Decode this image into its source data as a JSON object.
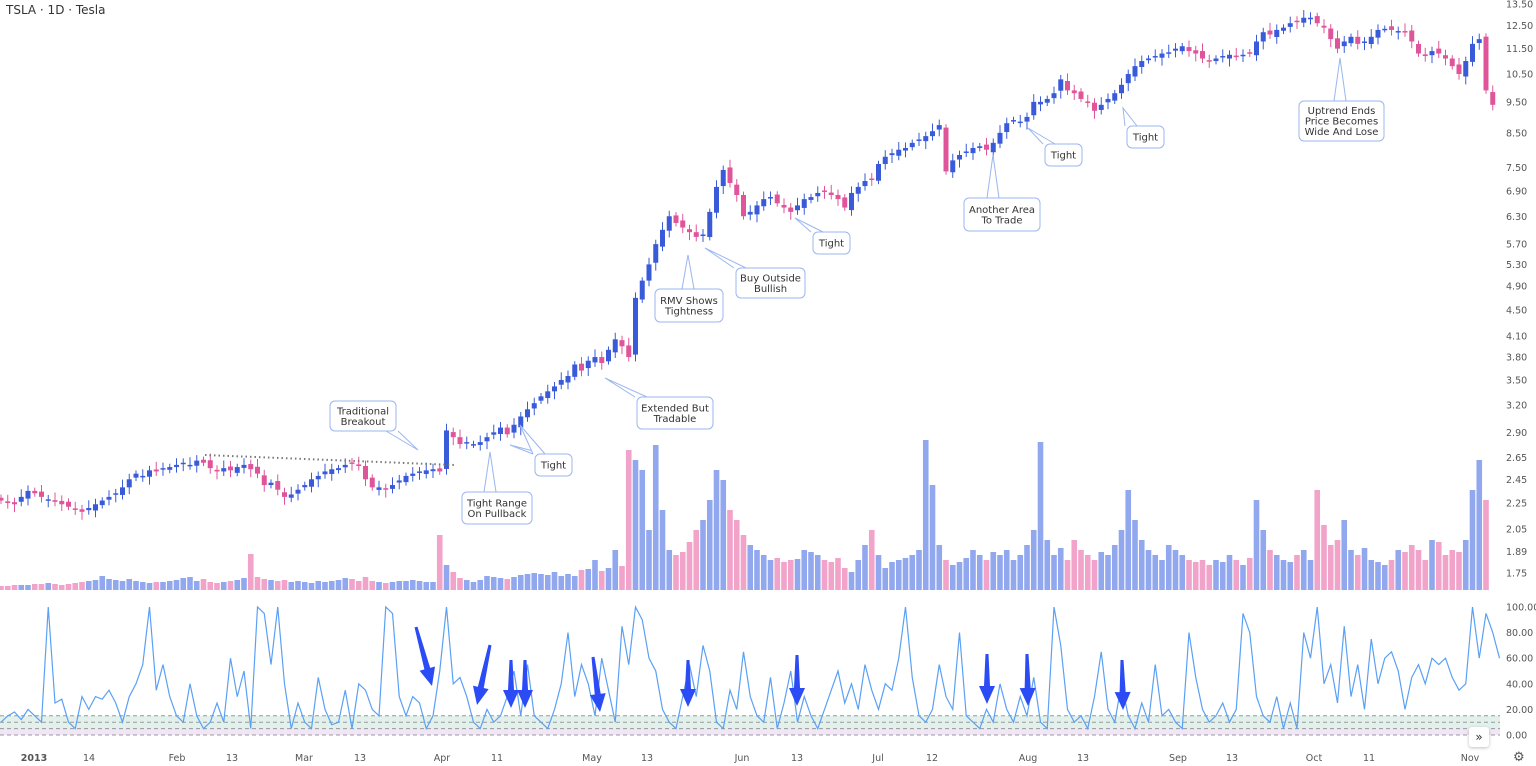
{
  "header": {
    "title": "TSLA · 1D · Tesla"
  },
  "colors": {
    "up": "#3a5bd9",
    "down": "#e0559a",
    "vol_up": "#91a8ee",
    "vol_down": "#f2a3c9",
    "rmv_line": "#5aa0f5",
    "arrow": "#2b4cf5",
    "callout_border": "#9bb6f0"
  },
  "chart_data": [
    {
      "type": "candlestick",
      "scale": "log",
      "y_ticks": [
        "13.50",
        "12.50",
        "11.50",
        "10.50",
        "9.50",
        "8.50",
        "7.50",
        "6.90",
        "6.30",
        "5.70",
        "5.30",
        "4.90",
        "4.50",
        "4.10",
        "3.80",
        "3.50",
        "3.20",
        "2.90",
        "2.65",
        "2.45",
        "2.25",
        "2.05",
        "1.89",
        "1.75"
      ],
      "ylim": [
        1.75,
        13.5
      ],
      "x_ticks": [
        {
          "label": "2013",
          "bold": true
        },
        {
          "label": "14"
        },
        {
          "label": "Feb"
        },
        {
          "label": "13"
        },
        {
          "label": "Mar"
        },
        {
          "label": "13"
        },
        {
          "label": "Apr"
        },
        {
          "label": "11"
        },
        {
          "label": "May"
        },
        {
          "label": "13"
        },
        {
          "label": "Jun"
        },
        {
          "label": "13"
        },
        {
          "label": "Jul"
        },
        {
          "label": "12"
        },
        {
          "label": "Aug"
        },
        {
          "label": "13"
        },
        {
          "label": "Sep"
        },
        {
          "label": "13"
        },
        {
          "label": "Oct"
        },
        {
          "label": "11"
        },
        {
          "label": "Nov"
        }
      ],
      "closes": [
        2.27,
        2.25,
        2.24,
        2.3,
        2.35,
        2.33,
        2.3,
        2.28,
        2.26,
        2.24,
        2.22,
        2.2,
        2.18,
        2.21,
        2.24,
        2.27,
        2.3,
        2.33,
        2.38,
        2.45,
        2.5,
        2.48,
        2.53,
        2.52,
        2.55,
        2.56,
        2.58,
        2.6,
        2.58,
        2.62,
        2.6,
        2.55,
        2.52,
        2.55,
        2.53,
        2.56,
        2.58,
        2.54,
        2.5,
        2.4,
        2.42,
        2.36,
        2.3,
        2.32,
        2.36,
        2.4,
        2.45,
        2.48,
        2.52,
        2.54,
        2.55,
        2.58,
        2.6,
        2.57,
        2.45,
        2.38,
        2.38,
        2.36,
        2.4,
        2.44,
        2.48,
        2.5,
        2.52,
        2.53,
        2.54,
        2.52,
        2.92,
        2.85,
        2.78,
        2.8,
        2.78,
        2.8,
        2.85,
        2.9,
        2.95,
        2.88,
        2.98,
        3.07,
        3.15,
        3.22,
        3.3,
        3.36,
        3.42,
        3.5,
        3.55,
        3.7,
        3.62,
        3.75,
        3.8,
        3.72,
        3.9,
        4.05,
        3.95,
        3.8,
        4.7,
        5.0,
        5.3,
        5.7,
        6.0,
        6.3,
        6.15,
        6.05,
        5.95,
        5.85,
        5.9,
        6.4,
        7.0,
        7.44,
        7.1,
        6.8,
        6.3,
        6.4,
        6.55,
        6.7,
        6.75,
        6.6,
        6.5,
        6.4,
        6.55,
        6.7,
        6.75,
        6.85,
        6.9,
        6.8,
        6.7,
        6.5,
        6.85,
        7.0,
        7.15,
        7.2,
        7.6,
        7.8,
        7.9,
        8.0,
        8.05,
        8.2,
        8.3,
        8.4,
        8.55,
        8.74,
        7.4,
        7.7,
        7.85,
        7.95,
        8.05,
        8.1,
        8.0,
        8.2,
        8.5,
        8.8,
        8.9,
        8.85,
        9.0,
        9.5,
        9.5,
        9.6,
        9.8,
        10.3,
        9.9,
        9.8,
        9.6,
        9.5,
        9.2,
        9.4,
        9.6,
        9.8,
        10.1,
        10.5,
        10.8,
        11.0,
        11.1,
        11.2,
        11.3,
        11.35,
        11.5,
        11.6,
        11.4,
        11.3,
        11.1,
        11.0,
        11.1,
        11.2,
        11.25,
        11.2,
        11.25,
        11.3,
        11.8,
        12.2,
        12.1,
        12.3,
        12.4,
        12.6,
        12.7,
        12.85,
        12.85,
        12.6,
        12.4,
        11.9,
        11.5,
        11.8,
        12.0,
        11.7,
        11.8,
        12.0,
        12.3,
        12.35,
        12.3,
        12.25,
        12.2,
        11.8,
        11.3,
        11.2,
        11.4,
        11.3,
        11.1,
        10.8,
        10.5,
        11.0,
        11.7,
        11.9,
        9.9,
        9.4
      ],
      "volume": [
        4,
        4,
        5,
        5,
        5,
        6,
        6,
        7,
        6,
        5,
        6,
        7,
        8,
        9,
        10,
        14,
        11,
        10,
        9,
        11,
        9,
        8,
        7,
        8,
        8,
        9,
        10,
        12,
        13,
        9,
        11,
        8,
        7,
        8,
        9,
        10,
        12,
        36,
        13,
        11,
        10,
        9,
        10,
        8,
        9,
        8,
        7,
        9,
        8,
        9,
        10,
        12,
        11,
        9,
        13,
        9,
        8,
        7,
        8,
        9,
        9,
        10,
        9,
        8,
        8,
        55,
        25,
        18,
        12,
        10,
        8,
        10,
        14,
        13,
        12,
        11,
        13,
        15,
        16,
        17,
        16,
        15,
        18,
        14,
        16,
        14,
        20,
        21,
        30,
        19,
        22,
        40,
        24,
        140,
        130,
        120,
        60,
        145,
        80,
        40,
        35,
        38,
        48,
        60,
        70,
        90,
        120,
        110,
        80,
        70,
        55,
        45,
        40,
        35,
        30,
        32,
        28,
        30,
        31,
        40,
        38,
        35,
        30,
        28,
        32,
        22,
        18,
        30,
        45,
        60,
        35,
        22,
        28,
        30,
        32,
        35,
        40,
        150,
        105,
        45,
        30,
        25,
        28,
        32,
        40,
        35,
        30,
        38,
        35,
        40,
        30,
        35,
        45,
        60,
        148,
        50,
        35,
        42,
        30,
        50,
        40,
        35,
        30,
        38,
        35,
        45,
        60,
        100,
        70,
        50,
        40,
        35,
        30,
        45,
        40,
        35,
        30,
        28,
        30,
        25,
        30,
        28,
        35,
        30,
        25,
        32,
        90,
        60,
        40,
        35,
        30,
        28,
        35,
        40,
        30,
        100,
        65,
        45,
        50,
        70,
        40,
        35,
        42,
        30,
        28,
        25,
        30,
        40,
        38,
        45,
        40,
        30,
        50,
        48,
        35,
        40,
        38,
        50,
        100,
        130,
        90
      ]
    },
    {
      "type": "line",
      "ylim": [
        0,
        100
      ],
      "y_ticks": [
        "100.00",
        "80.00",
        "60.00",
        "40.00",
        "20.00",
        "0.00"
      ],
      "bands": [
        {
          "from": 5,
          "to": 15,
          "color": "#e3f1ec"
        },
        {
          "from": 0,
          "to": 5,
          "color": "#f1e6f5"
        }
      ],
      "values": [
        10,
        15,
        18,
        12,
        20,
        15,
        10,
        100,
        25,
        28,
        10,
        5,
        30,
        20,
        30,
        28,
        35,
        25,
        10,
        30,
        40,
        55,
        100,
        35,
        55,
        30,
        15,
        10,
        40,
        15,
        5,
        10,
        25,
        10,
        60,
        30,
        50,
        5,
        100,
        95,
        55,
        100,
        40,
        5,
        25,
        10,
        5,
        45,
        20,
        8,
        10,
        35,
        5,
        40,
        35,
        20,
        15,
        100,
        95,
        30,
        15,
        30,
        25,
        5,
        15,
        50,
        100,
        40,
        45,
        30,
        10,
        5,
        20,
        10,
        15,
        30,
        50,
        15,
        55,
        15,
        10,
        5,
        20,
        40,
        80,
        30,
        55,
        40,
        15,
        60,
        35,
        10,
        85,
        55,
        100,
        90,
        60,
        50,
        20,
        10,
        5,
        30,
        55,
        30,
        70,
        50,
        10,
        5,
        35,
        20,
        65,
        30,
        15,
        10,
        45,
        5,
        25,
        50,
        10,
        30,
        15,
        5,
        20,
        35,
        50,
        25,
        40,
        20,
        55,
        35,
        20,
        40,
        35,
        60,
        100,
        45,
        15,
        10,
        20,
        55,
        30,
        20,
        80,
        15,
        10,
        5,
        20,
        10,
        40,
        20,
        10,
        30,
        15,
        45,
        10,
        5,
        100,
        70,
        20,
        10,
        15,
        5,
        30,
        65,
        20,
        10,
        40,
        15,
        5,
        25,
        10,
        55,
        15,
        20,
        10,
        5,
        80,
        45,
        20,
        10,
        15,
        25,
        10,
        20,
        95,
        80,
        30,
        15,
        10,
        30,
        5,
        25,
        5,
        80,
        60,
        100,
        40,
        55,
        25,
        85,
        30,
        55,
        20,
        75,
        40,
        60,
        65,
        50,
        20,
        45,
        55,
        40,
        60,
        55,
        60,
        45,
        35,
        40,
        100,
        60,
        95,
        80,
        60
      ]
    }
  ],
  "annotations": {
    "callouts": [
      {
        "lines": [
          "Traditional",
          "Breakout"
        ]
      },
      {
        "lines": [
          "Tight Range",
          "On Pullback"
        ]
      },
      {
        "lines": [
          "Tight"
        ]
      },
      {
        "lines": [
          "Extended But",
          "Tradable"
        ]
      },
      {
        "lines": [
          "RMV Shows",
          "Tightness"
        ]
      },
      {
        "lines": [
          "Buy Outside",
          "Bullish"
        ]
      },
      {
        "lines": [
          "Tight"
        ]
      },
      {
        "lines": [
          "Another Area",
          "To Trade"
        ]
      },
      {
        "lines": [
          "Tight"
        ]
      },
      {
        "lines": [
          "Tight"
        ]
      },
      {
        "lines": [
          "Uptrend Ends",
          "Price Becomes",
          "Wide And Lose"
        ]
      }
    ]
  },
  "controls": {
    "scroll_right": "»",
    "settings": "⚙"
  }
}
